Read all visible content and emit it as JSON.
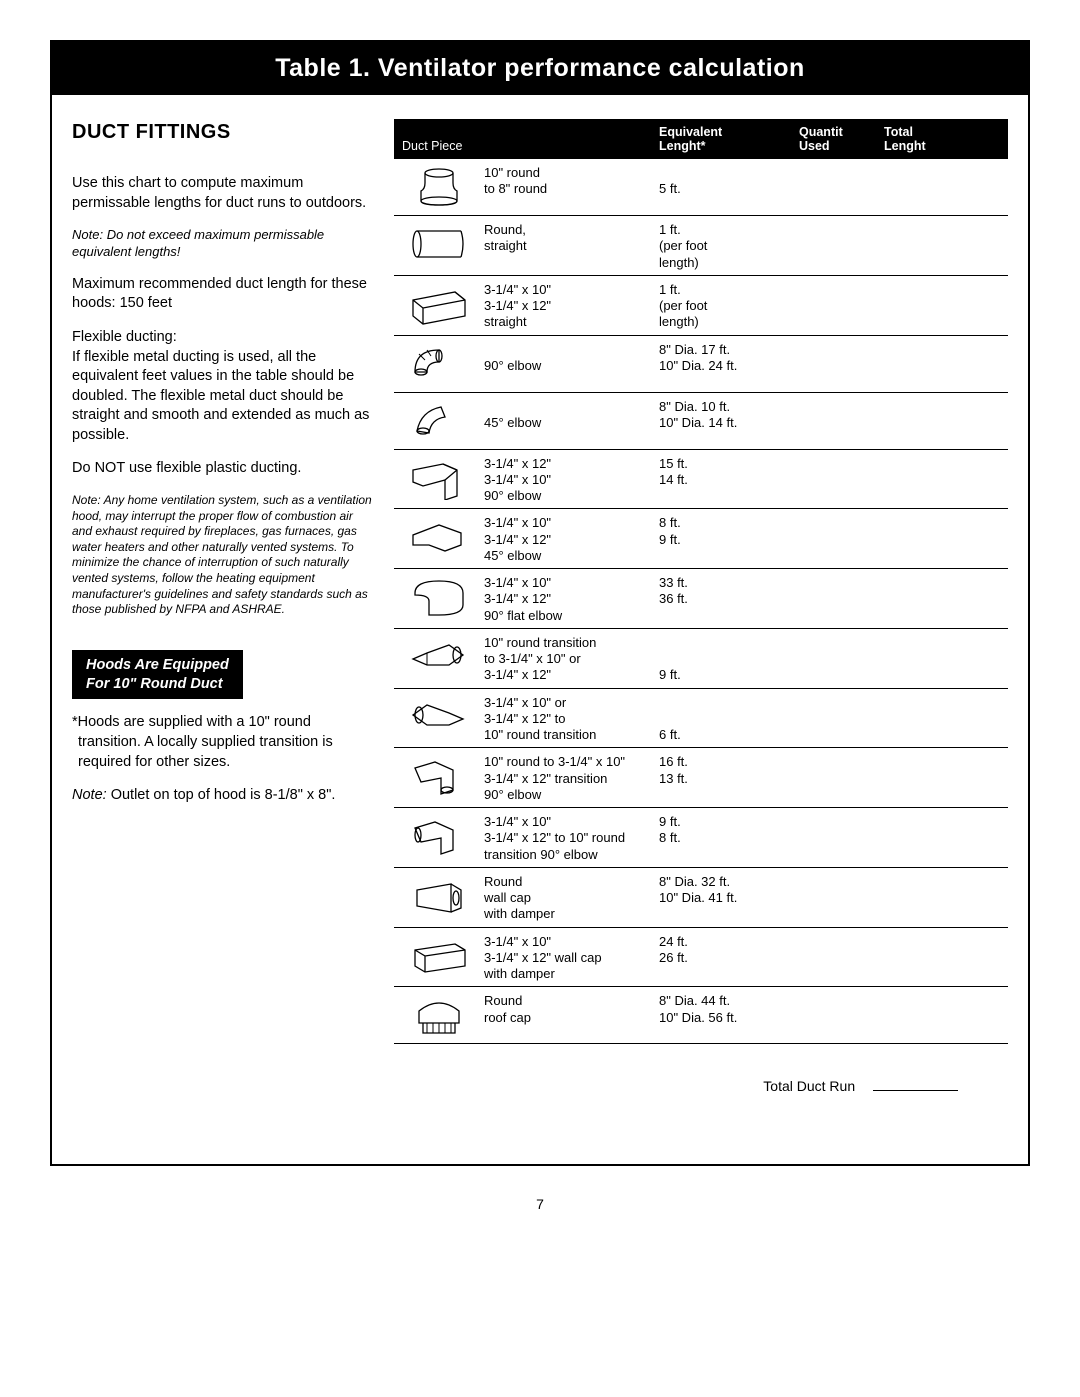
{
  "title": "Table 1. Ventilator performance calculation",
  "page_number": "7",
  "left": {
    "heading": "DUCT FITTINGS",
    "p1": "Use this chart to compute maximum permissable lengths for duct runs to outdoors.",
    "note1_label": "Note:",
    "note1": "  Do not exceed maximum permissable equivalent lengths!",
    "p2": "Maximum recommended duct length for these hoods: 150 feet",
    "p3": "Flexible ducting:\nIf flexible metal ducting is used, all the equivalent feet values in the table should be doubled. The flexible metal duct should be straight and smooth and extended as much as possible.",
    "p4": "Do NOT use flexible plastic ducting.",
    "note2_label": "Note:",
    "note2": "  Any home ventilation system, such as a ventilation hood, may interrupt the proper flow of combustion air and exhaust required by fireplaces, gas furnaces, gas water heaters and other naturally vented systems. To minimize the chance of interruption of such naturally vented systems, follow the heating equipment manufacturer's guidelines and safety standards such as those published by NFPA and ASHRAE.",
    "hoods_box_l1": "Hoods Are Equipped",
    "hoods_box_l2": "For 10\" Round Duct",
    "p5": "*Hoods are supplied with a 10\" round transition. A locally supplied transition is required for other sizes.",
    "note3_label": "Note:",
    "note3": "   Outlet on top of hood is 8-1/8\" x 8\"."
  },
  "table": {
    "header": {
      "piece": "Duct Piece",
      "eq_l1": "Equivalent",
      "eq_l2": "Lenght*",
      "qty_l1": "Quantit",
      "qty_l2": "Used",
      "tot_l1": "Total",
      "tot_l2": "Lenght"
    },
    "rows": [
      {
        "icon": "reducer",
        "desc": "10\" round\nto 8\" round",
        "eq": "\n5 ft."
      },
      {
        "icon": "round-straight",
        "desc": "Round,\nstraight",
        "eq": "1 ft.\n(per foot\nlength)"
      },
      {
        "icon": "rect-straight",
        "desc": "3-1/4\" x 10\"\n3-1/4\" x 12\"\nstraight",
        "eq": "1 ft.\n(per foot\nlength)"
      },
      {
        "icon": "round-90",
        "desc": "\n90° elbow",
        "eq": "8\" Dia. 17 ft.\n10\" Dia. 24 ft."
      },
      {
        "icon": "round-45",
        "desc": "\n45° elbow",
        "eq": "8\" Dia. 10 ft.\n10\" Dia. 14 ft."
      },
      {
        "icon": "rect-90",
        "desc": "3-1/4\" x 12\"\n3-1/4\" x 10\"\n90° elbow",
        "eq": "15 ft.\n14 ft."
      },
      {
        "icon": "rect-45",
        "desc": "3-1/4\" x 10\"\n3-1/4\" x 12\"\n45° elbow",
        "eq": "8 ft.\n9 ft."
      },
      {
        "icon": "rect-flat-90",
        "desc": "3-1/4\" x 10\"\n3-1/4\" x 12\"\n90° flat elbow",
        "eq": "33 ft.\n36 ft."
      },
      {
        "icon": "transition-a",
        "desc": "10\" round transition\nto 3-1/4\" x 10\" or\n3-1/4\" x 12\"",
        "eq": "\n\n9 ft."
      },
      {
        "icon": "transition-b",
        "desc": "3-1/4\" x 10\" or\n3-1/4\" x 12\" to\n10\" round transition",
        "eq": "\n\n6 ft."
      },
      {
        "icon": "transition-90a",
        "desc": "10\" round to 3-1/4\" x 10\"\n3-1/4\" x 12\" transition\n90° elbow",
        "eq": "16 ft.\n13 ft."
      },
      {
        "icon": "transition-90b",
        "desc": "3-1/4\" x 10\"\n3-1/4\" x 12\" to 10\" round\ntransition 90° elbow",
        "eq": "9 ft.\n8 ft."
      },
      {
        "icon": "wall-cap-round",
        "desc": "Round\nwall cap\nwith damper",
        "eq": "8\" Dia. 32 ft.\n10\" Dia. 41 ft."
      },
      {
        "icon": "wall-cap-rect",
        "desc": "3-1/4\" x 10\"\n3-1/4\" x 12\" wall cap\nwith damper",
        "eq": "24 ft.\n26 ft."
      },
      {
        "icon": "roof-cap",
        "desc": "Round\nroof cap",
        "eq": "8\" Dia. 44 ft.\n10\" Dia. 56 ft."
      }
    ],
    "total_run_label": "Total Duct Run"
  }
}
